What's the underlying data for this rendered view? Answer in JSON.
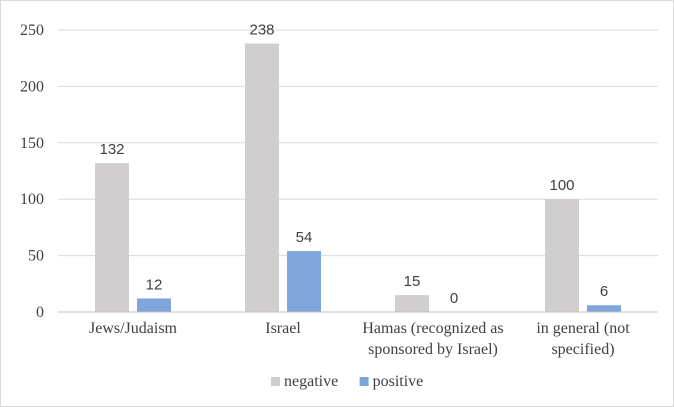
{
  "chart_data": {
    "type": "bar",
    "title": "",
    "xlabel": "",
    "ylabel": "",
    "ylim": [
      0,
      250
    ],
    "yticks": [
      "0",
      "50",
      "100",
      "150",
      "200",
      "250"
    ],
    "grid": true,
    "legend_position": "bottom",
    "categories": [
      [
        "Jews/Judaism"
      ],
      [
        "Israel"
      ],
      [
        "Hamas (recognized as",
        "sponsored by Israel)"
      ],
      [
        "in general (not",
        "specified)"
      ]
    ],
    "series": [
      {
        "name": "negative",
        "color": "#d0cece",
        "values": [
          132,
          238,
          15,
          100
        ]
      },
      {
        "name": "positive",
        "color": "#7ea6dc",
        "values": [
          12,
          54,
          0,
          6
        ]
      }
    ]
  }
}
